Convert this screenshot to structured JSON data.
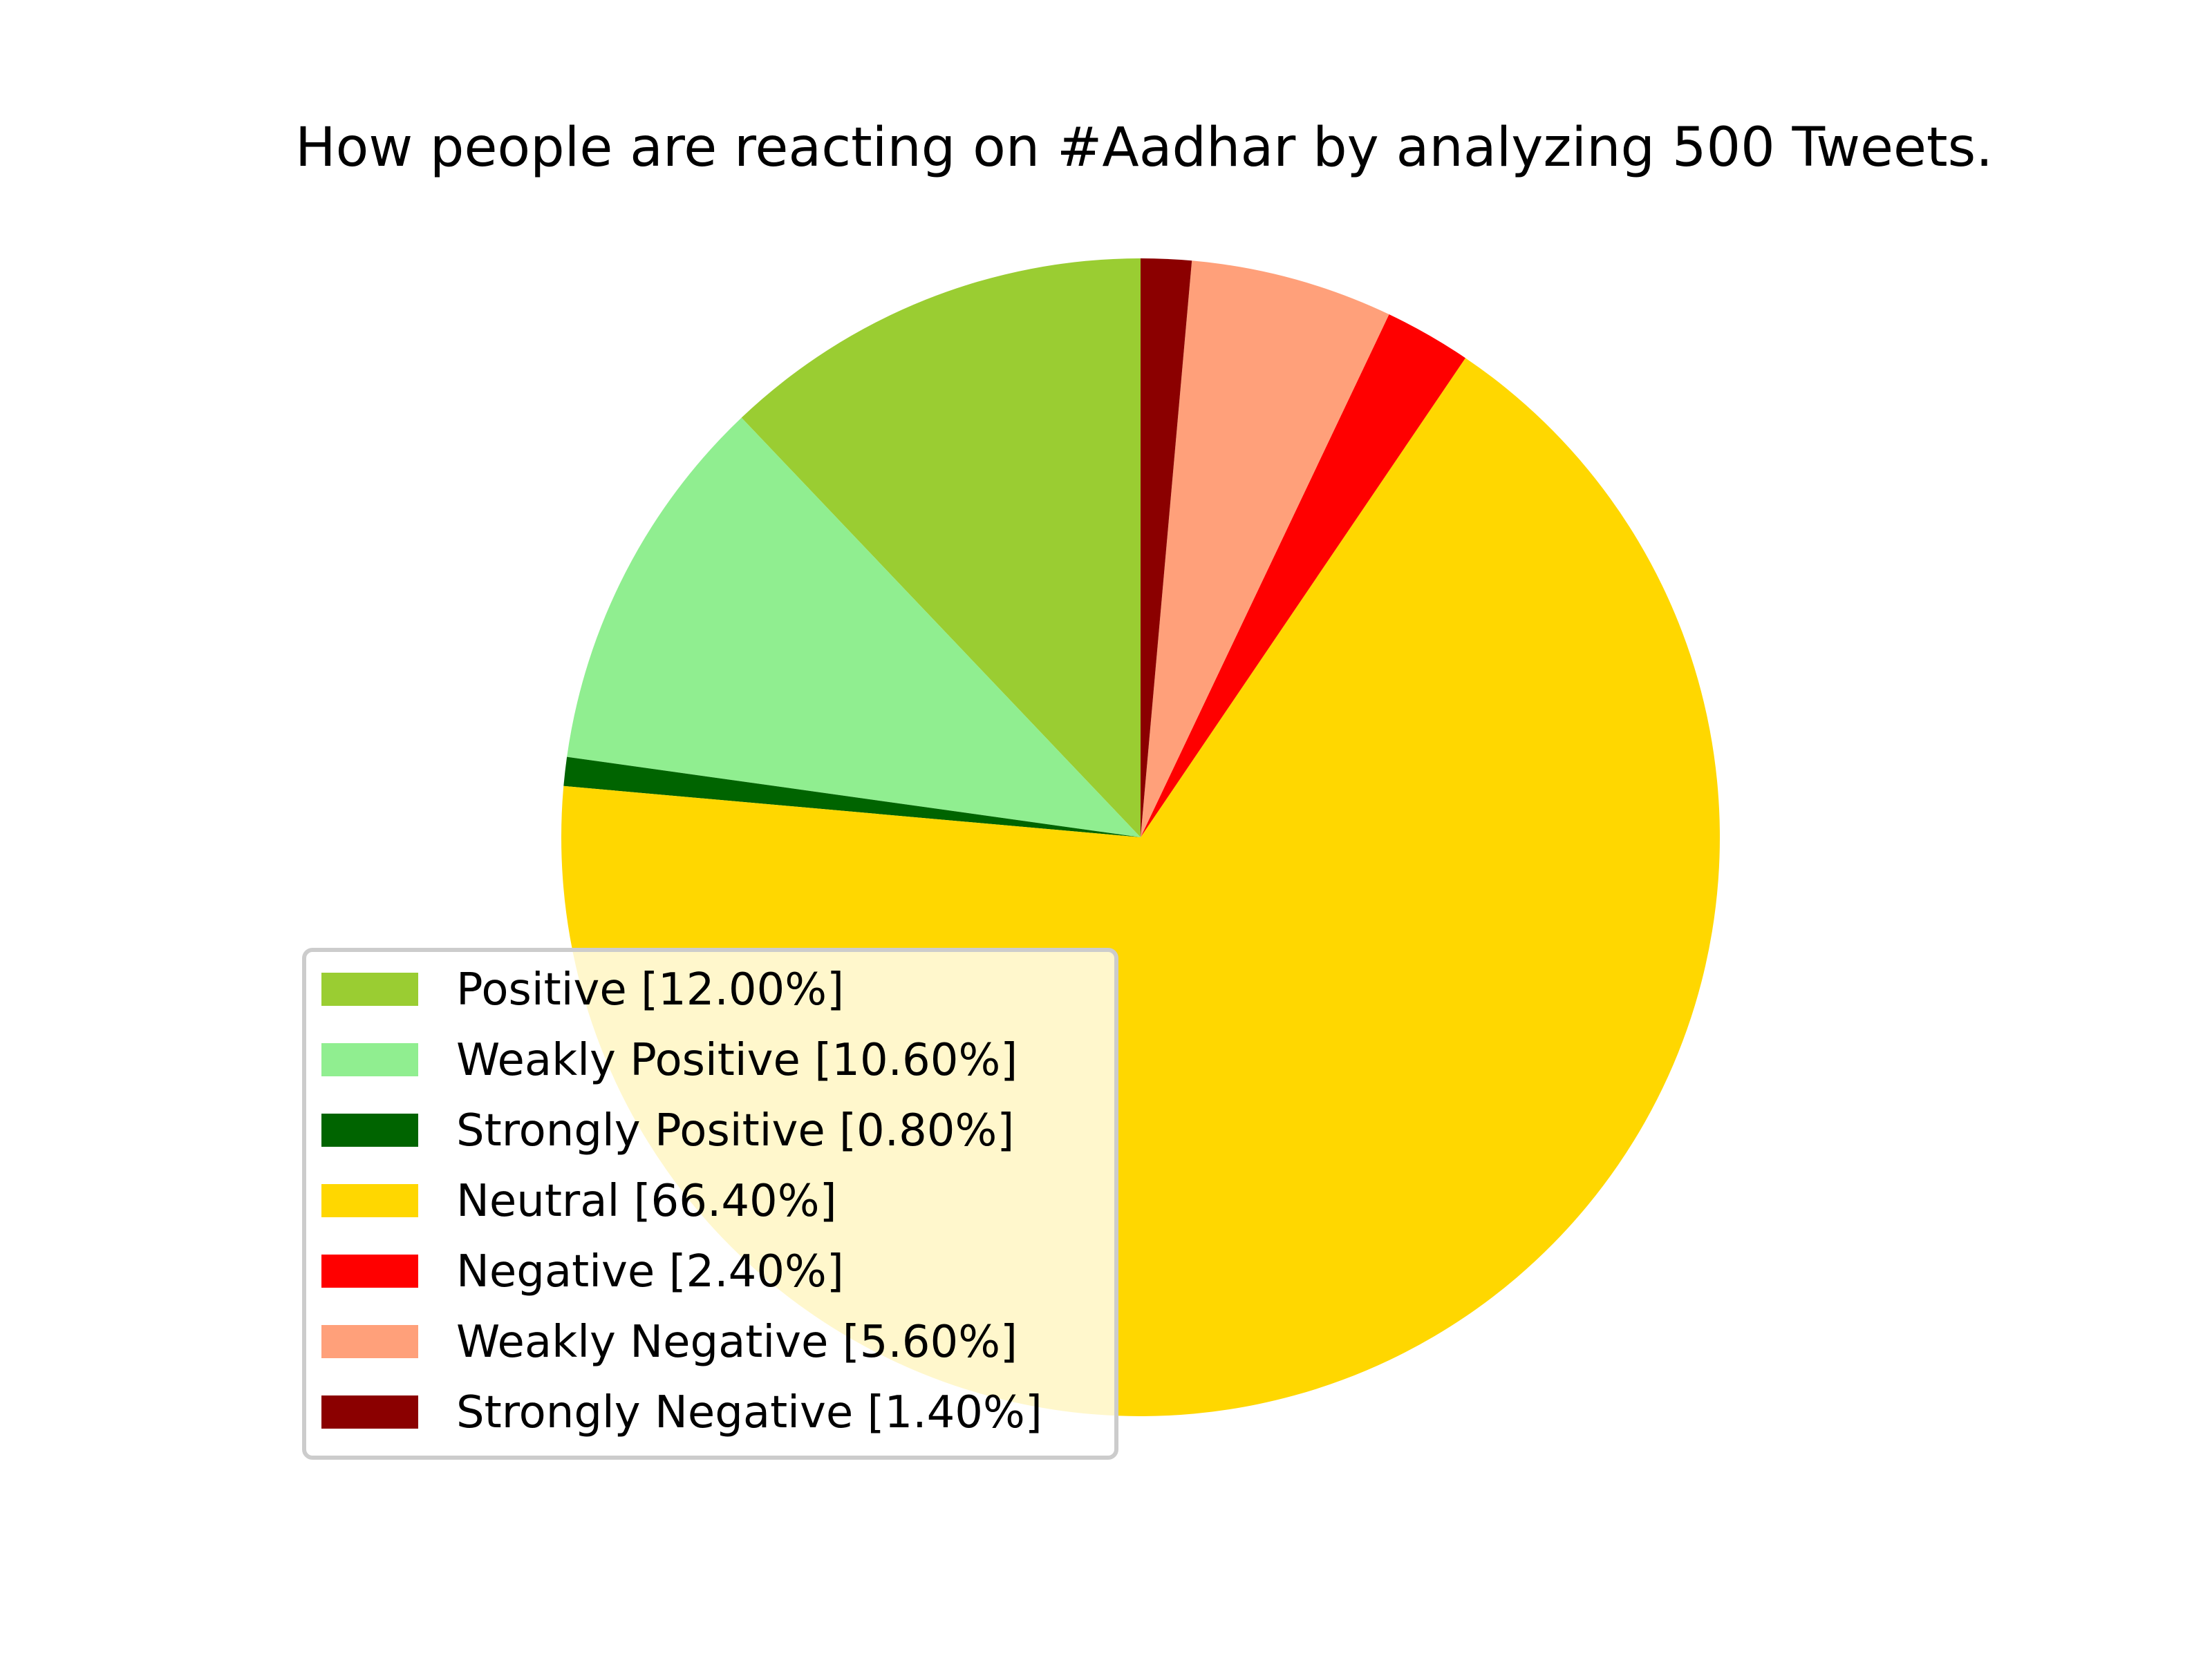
{
  "chart_data": {
    "type": "pie",
    "title": "How people are reacting on #Aadhar by analyzing 500 Tweets.",
    "legend_position": "lower-left",
    "start_angle_degrees": 90,
    "direction": "counterclockwise",
    "slices": [
      {
        "label": "Positive",
        "value": 12.0,
        "legend": "Positive [12.00%]",
        "color": "#9acd32"
      },
      {
        "label": "Weakly Positive",
        "value": 10.6,
        "legend": "Weakly Positive [10.60%]",
        "color": "#90ee90"
      },
      {
        "label": "Strongly Positive",
        "value": 0.8,
        "legend": "Strongly Positive [0.80%]",
        "color": "#006400"
      },
      {
        "label": "Neutral",
        "value": 66.4,
        "legend": "Neutral [66.40%]",
        "color": "#ffd700"
      },
      {
        "label": "Negative",
        "value": 2.4,
        "legend": "Negative [2.40%]",
        "color": "#ff0000"
      },
      {
        "label": "Weakly Negative",
        "value": 5.6,
        "legend": "Weakly Negative [5.60%]",
        "color": "#ffa07a"
      },
      {
        "label": "Strongly Negative",
        "value": 1.4,
        "legend": "Strongly Negative [1.40%]",
        "color": "#8b0000"
      }
    ]
  }
}
